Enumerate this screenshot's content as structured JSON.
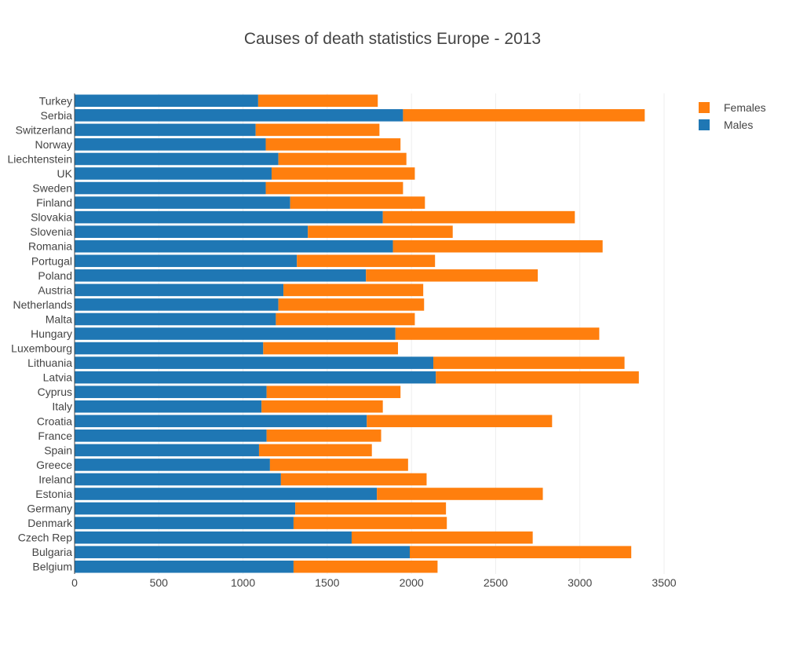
{
  "chart_data": {
    "type": "bar",
    "orientation": "horizontal",
    "stacked": true,
    "title": "Causes of death statistics Europe - 2013",
    "xlabel": "",
    "ylabel": "",
    "xlim": [
      0,
      3600
    ],
    "xticks": [
      0,
      500,
      1000,
      1500,
      2000,
      2500,
      3000,
      3500
    ],
    "grid": true,
    "legend_position": "top-right",
    "categories": [
      "Turkey",
      "Serbia",
      "Switzerland",
      "Norway",
      "Liechtenstein",
      "UK",
      "Sweden",
      "Finland",
      "Slovakia",
      "Slovenia",
      "Romania",
      "Portugal",
      "Poland",
      "Austria",
      "Netherlands",
      "Malta",
      "Hungary",
      "Luxembourg",
      "Lithuania",
      "Latvia",
      "Cyprus",
      "Italy",
      "Croatia",
      "France",
      "Spain",
      "Greece",
      "Ireland",
      "Estonia",
      "Germany",
      "Denmark",
      "Czech Rep",
      "Bulgaria",
      "Belgium"
    ],
    "series": [
      {
        "name": "Males",
        "color": "#1f77b4",
        "values": [
          1090,
          1950,
          1075,
          1135,
          1210,
          1170,
          1135,
          1280,
          1830,
          1385,
          1890,
          1320,
          1730,
          1240,
          1210,
          1195,
          1905,
          1120,
          2130,
          2145,
          1140,
          1110,
          1735,
          1140,
          1095,
          1160,
          1225,
          1795,
          1310,
          1300,
          1645,
          1990,
          1300
        ]
      },
      {
        "name": "Females",
        "color": "#ff7f0e",
        "values": [
          710,
          1435,
          735,
          800,
          760,
          850,
          815,
          800,
          1140,
          860,
          1245,
          820,
          1020,
          830,
          865,
          825,
          1210,
          800,
          1135,
          1205,
          795,
          720,
          1100,
          680,
          670,
          820,
          865,
          985,
          895,
          910,
          1075,
          1315,
          855
        ]
      }
    ]
  }
}
